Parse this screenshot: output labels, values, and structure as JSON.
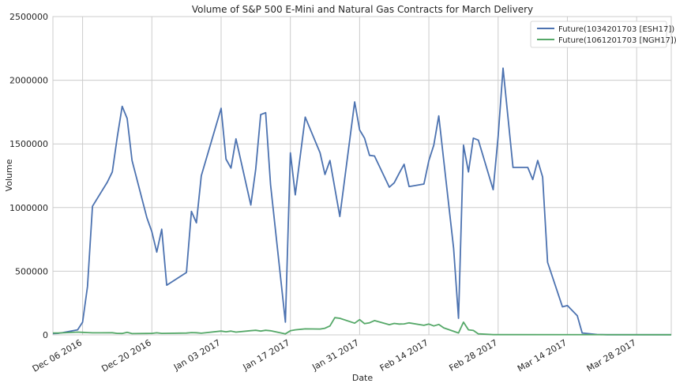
{
  "chart_data": {
    "type": "line",
    "title": "Volume of S&P 500 E-Mini and Natural Gas Contracts for March Delivery",
    "xlabel": "Date",
    "ylabel": "Volume",
    "ylim": [
      0,
      2500000
    ],
    "xlim": [
      "2016-11-30",
      "2017-04-04"
    ],
    "grid": true,
    "legend_position": "top-right",
    "y_ticks": [
      "0",
      "500000",
      "1000000",
      "1500000",
      "2000000",
      "2500000"
    ],
    "x_ticks": [
      {
        "date": "2016-12-06",
        "label": "Dec 06 2016"
      },
      {
        "date": "2016-12-20",
        "label": "Dec 20 2016"
      },
      {
        "date": "2017-01-03",
        "label": "Jan 03 2017"
      },
      {
        "date": "2017-01-17",
        "label": "Jan 17 2017"
      },
      {
        "date": "2017-01-31",
        "label": "Jan 31 2017"
      },
      {
        "date": "2017-02-14",
        "label": "Feb 14 2017"
      },
      {
        "date": "2017-02-28",
        "label": "Feb 28 2017"
      },
      {
        "date": "2017-03-14",
        "label": "Mar 14 2017"
      },
      {
        "date": "2017-03-28",
        "label": "Mar 28 2017"
      }
    ],
    "series": [
      {
        "name": "Future(1034201703 [ESH17])",
        "color": "#4c72b0",
        "points": [
          [
            "2016-11-30",
            10000
          ],
          [
            "2016-12-01",
            12000
          ],
          [
            "2016-12-02",
            18000
          ],
          [
            "2016-12-05",
            40000
          ],
          [
            "2016-12-06",
            100000
          ],
          [
            "2016-12-07",
            380000
          ],
          [
            "2016-12-08",
            1010000
          ],
          [
            "2016-12-11",
            1200000
          ],
          [
            "2016-12-12",
            1280000
          ],
          [
            "2016-12-13",
            1550000
          ],
          [
            "2016-12-14",
            1795000
          ],
          [
            "2016-12-15",
            1700000
          ],
          [
            "2016-12-16",
            1370000
          ],
          [
            "2016-12-19",
            920000
          ],
          [
            "2016-12-20",
            810000
          ],
          [
            "2016-12-21",
            650000
          ],
          [
            "2016-12-22",
            830000
          ],
          [
            "2016-12-23",
            390000
          ],
          [
            "2016-12-27",
            490000
          ],
          [
            "2016-12-28",
            970000
          ],
          [
            "2016-12-29",
            880000
          ],
          [
            "2016-12-30",
            1250000
          ],
          [
            "2017-01-03",
            1780000
          ],
          [
            "2017-01-04",
            1380000
          ],
          [
            "2017-01-05",
            1310000
          ],
          [
            "2017-01-06",
            1540000
          ],
          [
            "2017-01-09",
            1020000
          ],
          [
            "2017-01-10",
            1300000
          ],
          [
            "2017-01-11",
            1730000
          ],
          [
            "2017-01-12",
            1745000
          ],
          [
            "2017-01-13",
            1180000
          ],
          [
            "2017-01-16",
            100000
          ],
          [
            "2017-01-17",
            1430000
          ],
          [
            "2017-01-18",
            1100000
          ],
          [
            "2017-01-20",
            1710000
          ],
          [
            "2017-01-23",
            1430000
          ],
          [
            "2017-01-24",
            1260000
          ],
          [
            "2017-01-25",
            1370000
          ],
          [
            "2017-01-27",
            930000
          ],
          [
            "2017-01-30",
            1830000
          ],
          [
            "2017-01-31",
            1610000
          ],
          [
            "2017-02-01",
            1545000
          ],
          [
            "2017-02-02",
            1410000
          ],
          [
            "2017-02-03",
            1405000
          ],
          [
            "2017-02-06",
            1160000
          ],
          [
            "2017-02-07",
            1195000
          ],
          [
            "2017-02-08",
            1270000
          ],
          [
            "2017-02-09",
            1340000
          ],
          [
            "2017-02-10",
            1165000
          ],
          [
            "2017-02-13",
            1185000
          ],
          [
            "2017-02-14",
            1370000
          ],
          [
            "2017-02-15",
            1490000
          ],
          [
            "2017-02-16",
            1720000
          ],
          [
            "2017-02-17",
            1370000
          ],
          [
            "2017-02-19",
            680000
          ],
          [
            "2017-02-20",
            130000
          ],
          [
            "2017-02-21",
            1490000
          ],
          [
            "2017-02-22",
            1280000
          ],
          [
            "2017-02-23",
            1545000
          ],
          [
            "2017-02-24",
            1530000
          ],
          [
            "2017-02-27",
            1140000
          ],
          [
            "2017-02-28",
            1560000
          ],
          [
            "2017-03-01",
            2095000
          ],
          [
            "2017-03-03",
            1315000
          ],
          [
            "2017-03-06",
            1315000
          ],
          [
            "2017-03-07",
            1220000
          ],
          [
            "2017-03-08",
            1370000
          ],
          [
            "2017-03-09",
            1240000
          ],
          [
            "2017-03-10",
            570000
          ],
          [
            "2017-03-13",
            220000
          ],
          [
            "2017-03-14",
            230000
          ],
          [
            "2017-03-16",
            150000
          ],
          [
            "2017-03-17",
            15000
          ],
          [
            "2017-03-20",
            3000
          ],
          [
            "2017-03-22",
            1000
          ],
          [
            "2017-04-04",
            1000
          ]
        ]
      },
      {
        "name": "Future(1061201703 [NGH17])",
        "color": "#55a868",
        "points": [
          [
            "2016-11-30",
            15000
          ],
          [
            "2016-12-01",
            14000
          ],
          [
            "2016-12-02",
            16000
          ],
          [
            "2016-12-05",
            22000
          ],
          [
            "2016-12-06",
            20000
          ],
          [
            "2016-12-07",
            18000
          ],
          [
            "2016-12-08",
            16000
          ],
          [
            "2016-12-12",
            17000
          ],
          [
            "2016-12-13",
            12000
          ],
          [
            "2016-12-14",
            11000
          ],
          [
            "2016-12-15",
            20000
          ],
          [
            "2016-12-16",
            10000
          ],
          [
            "2016-12-19",
            11000
          ],
          [
            "2016-12-20",
            12000
          ],
          [
            "2016-12-21",
            16000
          ],
          [
            "2016-12-22",
            12000
          ],
          [
            "2016-12-27",
            14000
          ],
          [
            "2016-12-28",
            18000
          ],
          [
            "2016-12-29",
            17000
          ],
          [
            "2016-12-30",
            13000
          ],
          [
            "2017-01-03",
            30000
          ],
          [
            "2017-01-04",
            24000
          ],
          [
            "2017-01-05",
            30000
          ],
          [
            "2017-01-06",
            22000
          ],
          [
            "2017-01-09",
            33000
          ],
          [
            "2017-01-10",
            36000
          ],
          [
            "2017-01-11",
            30000
          ],
          [
            "2017-01-12",
            36000
          ],
          [
            "2017-01-13",
            32000
          ],
          [
            "2017-01-16",
            8000
          ],
          [
            "2017-01-17",
            32000
          ],
          [
            "2017-01-18",
            40000
          ],
          [
            "2017-01-20",
            47000
          ],
          [
            "2017-01-23",
            46000
          ],
          [
            "2017-01-24",
            52000
          ],
          [
            "2017-01-25",
            70000
          ],
          [
            "2017-01-26",
            135000
          ],
          [
            "2017-01-27",
            130000
          ],
          [
            "2017-01-30",
            92000
          ],
          [
            "2017-01-31",
            120000
          ],
          [
            "2017-02-01",
            88000
          ],
          [
            "2017-02-02",
            95000
          ],
          [
            "2017-02-03",
            112000
          ],
          [
            "2017-02-06",
            80000
          ],
          [
            "2017-02-07",
            90000
          ],
          [
            "2017-02-08",
            85000
          ],
          [
            "2017-02-09",
            86000
          ],
          [
            "2017-02-10",
            94000
          ],
          [
            "2017-02-13",
            75000
          ],
          [
            "2017-02-14",
            85000
          ],
          [
            "2017-02-15",
            70000
          ],
          [
            "2017-02-16",
            82000
          ],
          [
            "2017-02-17",
            55000
          ],
          [
            "2017-02-20",
            15000
          ],
          [
            "2017-02-21",
            100000
          ],
          [
            "2017-02-22",
            40000
          ],
          [
            "2017-02-23",
            35000
          ],
          [
            "2017-02-24",
            8000
          ],
          [
            "2017-02-27",
            2000
          ],
          [
            "2017-04-04",
            1000
          ]
        ]
      }
    ]
  }
}
